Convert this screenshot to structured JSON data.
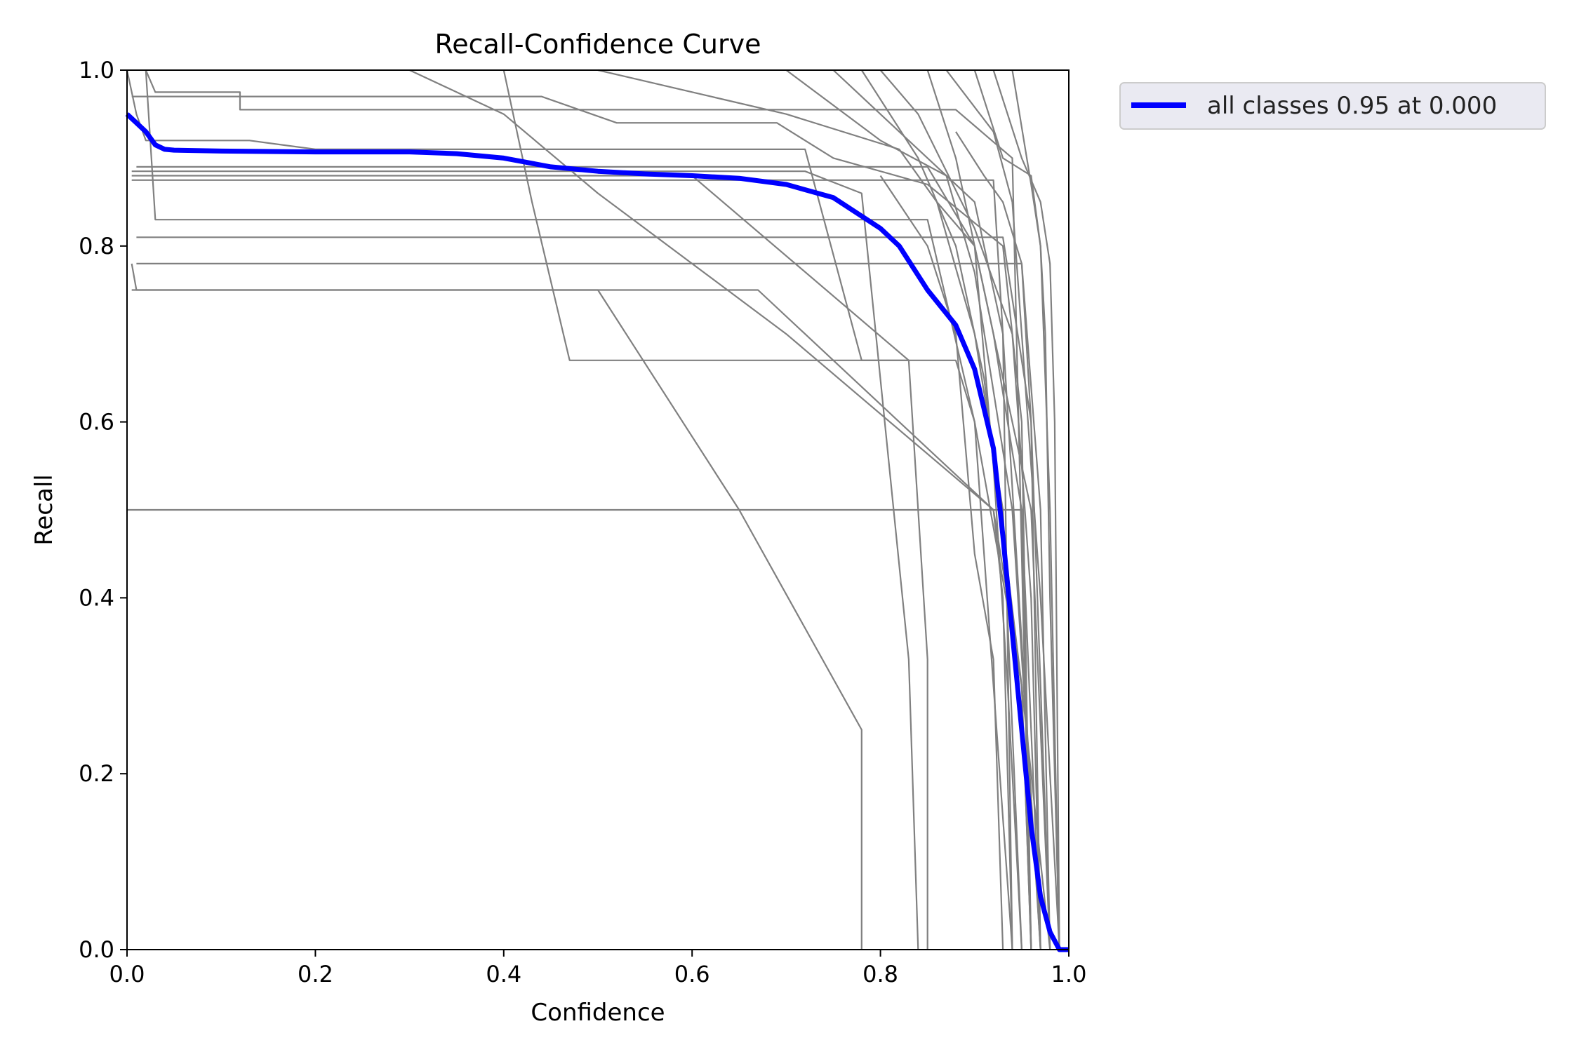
{
  "chart_data": {
    "type": "line",
    "title": "Recall-Confidence Curve",
    "xlabel": "Confidence",
    "ylabel": "Recall",
    "xlim": [
      0,
      1
    ],
    "ylim": [
      0,
      1
    ],
    "x_ticks": [
      "0.0",
      "0.2",
      "0.4",
      "0.6",
      "0.8",
      "1.0"
    ],
    "y_ticks": [
      "0.0",
      "0.2",
      "0.4",
      "0.6",
      "0.8",
      "1.0"
    ],
    "grid": false,
    "legend_position": "outside upper-right",
    "colors": {
      "mean_curve": "#0000ff",
      "class_curves": "#808080",
      "legend_bg": "#eaeaf2"
    },
    "series": [
      {
        "name": "all classes 0.95 at 0.000",
        "color": "#0000ff",
        "x": [
          0,
          0.01,
          0.02,
          0.03,
          0.04,
          0.05,
          0.1,
          0.2,
          0.3,
          0.35,
          0.4,
          0.45,
          0.5,
          0.55,
          0.6,
          0.65,
          0.7,
          0.75,
          0.8,
          0.82,
          0.85,
          0.88,
          0.9,
          0.92,
          0.93,
          0.94,
          0.95,
          0.96,
          0.97,
          0.98,
          0.99,
          1.0
        ],
        "y": [
          0.95,
          0.94,
          0.93,
          0.915,
          0.91,
          0.909,
          0.908,
          0.907,
          0.907,
          0.905,
          0.9,
          0.89,
          0.885,
          0.882,
          0.88,
          0.877,
          0.87,
          0.855,
          0.82,
          0.8,
          0.75,
          0.71,
          0.66,
          0.57,
          0.47,
          0.36,
          0.25,
          0.14,
          0.06,
          0.02,
          0.0,
          0.0
        ]
      },
      {
        "color": "#808080",
        "x": [
          0,
          0.005,
          0.005,
          0.95,
          0.96
        ],
        "y": [
          0.5,
          0.5,
          0.5,
          0.5,
          0.0
        ]
      },
      {
        "color": "#808080",
        "x": [
          0.005,
          0.01,
          0.01,
          0.5,
          0.65,
          0.78,
          0.78
        ],
        "y": [
          0.75,
          0.75,
          0.75,
          0.75,
          0.5,
          0.25,
          0.0
        ]
      },
      {
        "color": "#808080",
        "x": [
          0.005,
          0.01,
          0.67,
          0.92,
          0.93,
          0.94
        ],
        "y": [
          0.78,
          0.75,
          0.75,
          0.5,
          0.4,
          0.0
        ]
      },
      {
        "color": "#808080",
        "x": [
          0.01,
          0.03,
          0.03,
          0.95,
          0.97,
          0.98
        ],
        "y": [
          0.78,
          0.78,
          0.78,
          0.78,
          0.5,
          0.0
        ]
      },
      {
        "color": "#808080",
        "x": [
          0.01,
          0.015,
          0.015,
          0.93,
          0.96,
          0.97
        ],
        "y": [
          0.81,
          0.81,
          0.81,
          0.81,
          0.6,
          0.0
        ]
      },
      {
        "color": "#808080",
        "x": [
          0.02,
          0.03,
          0.03,
          0.85,
          0.9,
          0.95,
          0.96
        ],
        "y": [
          1.0,
          0.83,
          0.83,
          0.83,
          0.6,
          0.3,
          0.0
        ]
      },
      {
        "color": "#808080",
        "x": [
          0.005,
          0.01,
          0.33,
          0.6,
          0.83,
          0.83,
          0.85,
          0.85
        ],
        "y": [
          0.88,
          0.88,
          0.88,
          0.88,
          0.67,
          0.67,
          0.33,
          0.0
        ]
      },
      {
        "color": "#808080",
        "x": [
          0.005,
          0.01,
          0.85,
          0.92,
          0.93,
          0.94
        ],
        "y": [
          0.875,
          0.875,
          0.875,
          0.875,
          0.7,
          0.0
        ]
      },
      {
        "color": "#808080",
        "x": [
          0.01,
          0.02,
          0.85,
          0.9,
          0.96,
          0.98
        ],
        "y": [
          0.89,
          0.89,
          0.89,
          0.8,
          0.5,
          0.0
        ]
      },
      {
        "color": "#808080",
        "x": [
          0.005,
          0.03,
          0.72,
          0.78,
          0.83,
          0.84
        ],
        "y": [
          0.885,
          0.885,
          0.885,
          0.86,
          0.33,
          0.0
        ]
      },
      {
        "color": "#808080",
        "x": [
          0.0,
          0.01,
          0.02,
          0.035,
          0.13,
          0.2,
          0.72,
          0.78,
          0.83
        ],
        "y": [
          1.0,
          0.95,
          0.92,
          0.92,
          0.92,
          0.91,
          0.91,
          0.67,
          0.67
        ]
      },
      {
        "color": "#808080",
        "x": [
          0.02,
          0.03,
          0.03,
          0.12,
          0.12,
          0.88,
          0.94,
          0.96
        ],
        "y": [
          1.0,
          0.975,
          0.975,
          0.975,
          0.955,
          0.955,
          0.9,
          0.0
        ]
      },
      {
        "color": "#808080",
        "x": [
          0.005,
          0.44,
          0.52,
          0.69,
          0.75,
          0.85,
          0.93,
          0.95,
          0.96
        ],
        "y": [
          0.97,
          0.97,
          0.94,
          0.94,
          0.9,
          0.87,
          0.8,
          0.6,
          0.0
        ]
      },
      {
        "color": "#808080",
        "x": [
          0.3,
          0.4,
          0.5,
          0.7,
          0.92,
          0.95,
          0.96
        ],
        "y": [
          1.0,
          0.95,
          0.86,
          0.7,
          0.5,
          0.3,
          0.0
        ]
      },
      {
        "color": "#808080",
        "x": [
          0.4,
          0.43,
          0.47,
          0.8,
          0.85,
          0.88,
          0.9,
          0.94
        ],
        "y": [
          1.0,
          0.85,
          0.67,
          0.67,
          0.67,
          0.67,
          0.6,
          0.0
        ]
      },
      {
        "color": "#808080",
        "x": [
          0.5,
          0.7,
          0.82,
          0.86,
          0.9,
          0.93,
          0.95
        ],
        "y": [
          1.0,
          0.95,
          0.91,
          0.85,
          0.7,
          0.5,
          0.0
        ]
      },
      {
        "color": "#808080",
        "x": [
          0.7,
          0.8,
          0.87,
          0.9,
          0.94,
          0.97
        ],
        "y": [
          1.0,
          0.92,
          0.88,
          0.77,
          0.5,
          0.0
        ]
      },
      {
        "color": "#808080",
        "x": [
          0.75,
          0.82,
          0.9,
          0.93,
          0.95,
          0.97
        ],
        "y": [
          1.0,
          0.93,
          0.85,
          0.7,
          0.35,
          0.0
        ]
      },
      {
        "color": "#808080",
        "x": [
          0.78,
          0.84,
          0.88,
          0.91,
          0.95,
          0.98
        ],
        "y": [
          1.0,
          0.9,
          0.8,
          0.65,
          0.3,
          0.0
        ]
      },
      {
        "color": "#808080",
        "x": [
          0.8,
          0.84,
          0.9,
          0.94,
          0.96,
          0.97
        ],
        "y": [
          1.0,
          0.95,
          0.82,
          0.7,
          0.4,
          0.0
        ]
      },
      {
        "color": "#808080",
        "x": [
          0.85,
          0.88,
          0.9,
          0.92,
          0.95,
          0.97
        ],
        "y": [
          1.0,
          0.9,
          0.8,
          0.7,
          0.5,
          0.0
        ]
      },
      {
        "color": "#808080",
        "x": [
          0.87,
          0.92,
          0.94,
          0.95,
          0.97,
          0.99
        ],
        "y": [
          1.0,
          0.93,
          0.85,
          0.7,
          0.4,
          0.0
        ]
      },
      {
        "color": "#808080",
        "x": [
          0.9,
          0.93,
          0.96,
          0.97,
          0.98,
          0.99
        ],
        "y": [
          1.0,
          0.9,
          0.88,
          0.8,
          0.5,
          0.0
        ]
      },
      {
        "color": "#808080",
        "x": [
          0.92,
          0.95,
          0.97,
          0.98,
          0.985,
          0.99
        ],
        "y": [
          1.0,
          0.9,
          0.85,
          0.78,
          0.6,
          0.0
        ]
      },
      {
        "color": "#808080",
        "x": [
          0.94,
          0.96,
          0.97,
          0.975,
          0.98,
          0.99
        ],
        "y": [
          1.0,
          0.87,
          0.8,
          0.7,
          0.4,
          0.0
        ]
      },
      {
        "color": "#808080",
        "x": [
          0.88,
          0.91,
          0.93,
          0.95,
          0.96,
          0.98
        ],
        "y": [
          0.93,
          0.88,
          0.85,
          0.78,
          0.6,
          0.0
        ]
      },
      {
        "color": "#808080",
        "x": [
          0.86,
          0.9,
          0.92,
          0.935,
          0.95
        ],
        "y": [
          0.85,
          0.8,
          0.55,
          0.3,
          0.0
        ]
      },
      {
        "color": "#808080",
        "x": [
          0.8,
          0.85,
          0.88,
          0.9,
          0.92,
          0.93
        ],
        "y": [
          0.88,
          0.8,
          0.7,
          0.45,
          0.33,
          0.0
        ]
      }
    ]
  },
  "legend": {
    "label": "all classes 0.95 at 0.000"
  }
}
